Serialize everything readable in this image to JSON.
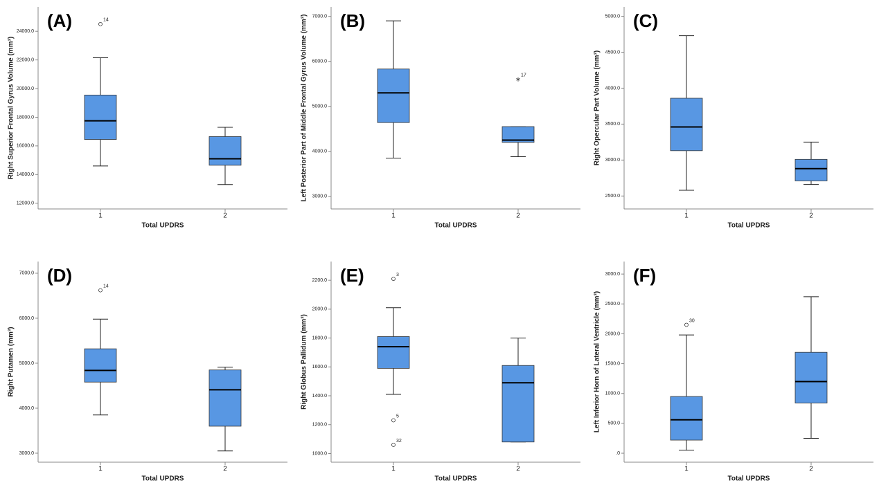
{
  "chart_data": [
    {
      "type": "box",
      "panel_label": "(A)",
      "ylabel": "Right Superior Frontal Gyrus Volume (mm³)",
      "xlabel": "Total UPDRS",
      "categories": [
        "1",
        "2"
      ],
      "color": "#5897e3",
      "ylim": [
        11600,
        25700
      ],
      "yticks": [
        {
          "value": 12000,
          "label": "12000.0"
        },
        {
          "value": 14000,
          "label": "14000.0"
        },
        {
          "value": 16000,
          "label": "16000.0"
        },
        {
          "value": 18000,
          "label": "18000.0"
        },
        {
          "value": 20000,
          "label": "20000.0"
        },
        {
          "value": 22000,
          "label": "22000.0"
        },
        {
          "value": 24000,
          "label": "24000.0"
        }
      ],
      "boxes": [
        {
          "min": 14600,
          "q1": 16450,
          "median": 17750,
          "q3": 19550,
          "max": 22150,
          "outliers": [
            {
              "value": 24500,
              "label": "14",
              "marker": "circle"
            }
          ]
        },
        {
          "min": 13300,
          "q1": 14650,
          "median": 15100,
          "q3": 16650,
          "max": 17300
        }
      ]
    },
    {
      "type": "box",
      "panel_label": "(B)",
      "ylabel": "Left Posterior Part of Middle Frontal Gyrus Volume (mm³)",
      "xlabel": "Total UPDRS",
      "categories": [
        "1",
        "2"
      ],
      "color": "#5897e3",
      "ylim": [
        2720,
        7210
      ],
      "yticks": [
        {
          "value": 3000,
          "label": "3000.0"
        },
        {
          "value": 4000,
          "label": "4000.0"
        },
        {
          "value": 5000,
          "label": "5000.0"
        },
        {
          "value": 6000,
          "label": "6000.0"
        },
        {
          "value": 7000,
          "label": "7000.0"
        }
      ],
      "boxes": [
        {
          "min": 3850,
          "q1": 4640,
          "median": 5300,
          "q3": 5830,
          "max": 6900
        },
        {
          "min": 3880,
          "q1": 4200,
          "median": 4250,
          "q3": 4550,
          "max": 4550,
          "outliers": [
            {
              "value": 5600,
              "label": "17",
              "marker": "star"
            }
          ]
        }
      ]
    },
    {
      "type": "box",
      "panel_label": "(C)",
      "ylabel": "Right Opercular Part Volume (mm³)",
      "xlabel": "Total UPDRS",
      "categories": [
        "1",
        "2"
      ],
      "color": "#5897e3",
      "ylim": [
        2320,
        5130
      ],
      "yticks": [
        {
          "value": 2500,
          "label": "2500.0"
        },
        {
          "value": 3000,
          "label": "3000.0"
        },
        {
          "value": 3500,
          "label": "3500.0"
        },
        {
          "value": 4000,
          "label": "4000.0"
        },
        {
          "value": 4500,
          "label": "4500.0"
        },
        {
          "value": 5000,
          "label": "5000.0"
        }
      ],
      "boxes": [
        {
          "min": 2580,
          "q1": 3130,
          "median": 3460,
          "q3": 3860,
          "max": 4730
        },
        {
          "min": 2660,
          "q1": 2710,
          "median": 2880,
          "q3": 3010,
          "max": 3250
        }
      ]
    },
    {
      "type": "box",
      "panel_label": "(D)",
      "ylabel": "Right Putamen (mm³)",
      "xlabel": "Total UPDRS",
      "categories": [
        "1",
        "2"
      ],
      "color": "#5897e3",
      "ylim": [
        2800,
        7260
      ],
      "yticks": [
        {
          "value": 3000,
          "label": "3000.0"
        },
        {
          "value": 4000,
          "label": "4000.0"
        },
        {
          "value": 5000,
          "label": "5000.0"
        },
        {
          "value": 6000,
          "label": "6000.0"
        },
        {
          "value": 7000,
          "label": "7000.0"
        }
      ],
      "boxes": [
        {
          "min": 3850,
          "q1": 4580,
          "median": 4840,
          "q3": 5320,
          "max": 5980,
          "outliers": [
            {
              "value": 6620,
              "label": "14",
              "marker": "circle"
            }
          ]
        },
        {
          "min": 3050,
          "q1": 3600,
          "median": 4410,
          "q3": 4850,
          "max": 4910
        }
      ]
    },
    {
      "type": "box",
      "panel_label": "(E)",
      "ylabel": "Right Globus Pallidum (mm³)",
      "xlabel": "Total UPDRS",
      "categories": [
        "1",
        "2"
      ],
      "color": "#5897e3",
      "ylim": [
        940,
        2330
      ],
      "yticks": [
        {
          "value": 1000,
          "label": "1000.0"
        },
        {
          "value": 1200,
          "label": "1200.0"
        },
        {
          "value": 1400,
          "label": "1400.0"
        },
        {
          "value": 1600,
          "label": "1600.0"
        },
        {
          "value": 1800,
          "label": "1800.0"
        },
        {
          "value": 2000,
          "label": "2000.0"
        },
        {
          "value": 2200,
          "label": "2200.0"
        }
      ],
      "boxes": [
        {
          "min": 1410,
          "q1": 1590,
          "median": 1740,
          "q3": 1810,
          "max": 2010,
          "outliers": [
            {
              "value": 2210,
              "label": "3",
              "marker": "circle"
            },
            {
              "value": 1230,
              "label": "5",
              "marker": "circle"
            },
            {
              "value": 1060,
              "label": "32",
              "marker": "circle"
            }
          ]
        },
        {
          "min": 1080,
          "q1": 1080,
          "median": 1490,
          "q3": 1610,
          "max": 1800
        }
      ]
    },
    {
      "type": "box",
      "panel_label": "(F)",
      "ylabel": "Left Inferior Horn of Lateral Ventricle (mm³)",
      "xlabel": "Total UPDRS",
      "categories": [
        "1",
        "2"
      ],
      "color": "#5897e3",
      "ylim": [
        -150,
        3210
      ],
      "yticks": [
        {
          "value": 0,
          "label": ".0"
        },
        {
          "value": 500,
          "label": "500.0"
        },
        {
          "value": 1000,
          "label": "1000.0"
        },
        {
          "value": 1500,
          "label": "1500.0"
        },
        {
          "value": 2000,
          "label": "2000.0"
        },
        {
          "value": 2500,
          "label": "2500.0"
        },
        {
          "value": 3000,
          "label": "3000.0"
        }
      ],
      "boxes": [
        {
          "min": 50,
          "q1": 220,
          "median": 560,
          "q3": 950,
          "max": 1980,
          "outliers": [
            {
              "value": 2150,
              "label": "30",
              "marker": "circle"
            }
          ]
        },
        {
          "min": 250,
          "q1": 840,
          "median": 1200,
          "q3": 1690,
          "max": 2620
        }
      ]
    }
  ]
}
